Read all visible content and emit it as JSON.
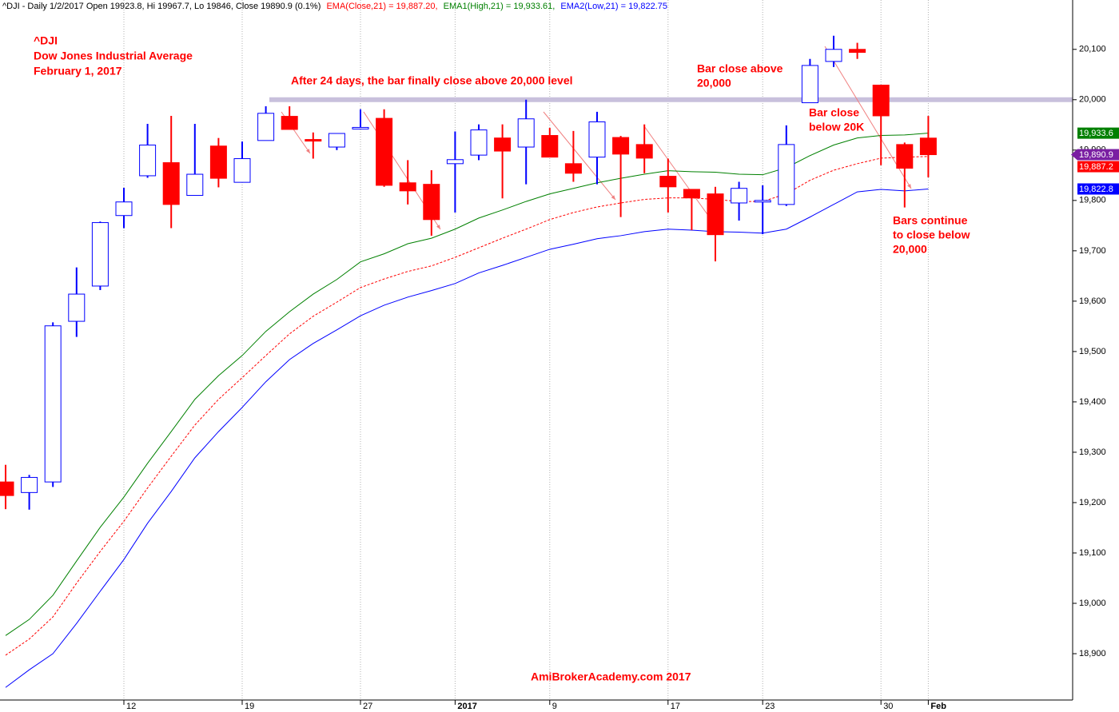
{
  "chart_data": {
    "type": "candlestick",
    "header": [
      "^DJI - Daily 1/2/2017 Open 19923.8, Hi 19967.7, Lo 19846, Close 19890.9 (0.1%)",
      "EMA(Close,21) = 19,887.20,",
      "EMA1(High,21) = 19,933.61,",
      "EMA2(Low,21) = 19,822.75"
    ],
    "header_colors": [
      "#000000",
      "#ff0000",
      "#008000",
      "#0000ff"
    ],
    "annotations": [
      {
        "lines": [
          "^DJI",
          "Dow Jones Industrial Average",
          "February 1, 2017"
        ]
      },
      {
        "lines": [
          "After 24 days, the bar finally close above 20,000 level"
        ]
      },
      {
        "lines": [
          "Bar close above",
          "20,000"
        ]
      },
      {
        "lines": [
          "Bar close",
          "below 20K"
        ]
      },
      {
        "lines": [
          "Bars continue",
          "to close below",
          "20,000"
        ]
      },
      {
        "lines": [
          "AmiBrokerAcademy.com  2017"
        ]
      }
    ],
    "categories": [
      null,
      null,
      null,
      null,
      null,
      "12",
      null,
      null,
      null,
      null,
      "19",
      null,
      null,
      null,
      null,
      "27",
      null,
      null,
      null,
      "2017",
      null,
      null,
      null,
      "9",
      null,
      null,
      null,
      null,
      "17",
      null,
      null,
      null,
      "23",
      null,
      null,
      null,
      null,
      "30",
      null,
      "Feb"
    ],
    "open": [
      19241,
      19220,
      19241,
      19560,
      19630,
      19770,
      19849,
      19875,
      19810,
      19908,
      19836,
      19919,
      19967,
      19921,
      19906,
      19943,
      19963,
      19835,
      19832,
      19873,
      19890,
      19924,
      19906,
      19929,
      19873,
      19886,
      19925,
      19911,
      19848,
      19822,
      19813,
      19795,
      19797,
      19792,
      19994,
      20076,
      20100,
      20029,
      19911,
      19923.8
    ],
    "high": [
      19275,
      19255,
      19558,
      19667,
      19758,
      19825,
      19952,
      19968,
      19952,
      19924,
      19917,
      19987,
      19987,
      19935,
      19933,
      19981,
      19981,
      19880,
      19860,
      19937,
      19951,
      19951,
      20000,
      19944,
      19938,
      19976,
      19928,
      19951,
      19883,
      19822,
      19827,
      19837,
      19830,
      19949,
      20081,
      20127,
      20113,
      20029,
      19915,
      19967.7
    ],
    "low": [
      19187,
      19186,
      19231,
      19529,
      19622,
      19745,
      19845,
      19745,
      19810,
      19826,
      19836,
      19919,
      19941,
      19883,
      19900,
      19943,
      19827,
      19792,
      19730,
      19776,
      19880,
      19804,
      19832,
      19886,
      19837,
      19832,
      19767,
      19854,
      19776,
      19741,
      19679,
      19760,
      19733,
      19789,
      19994,
      20065,
      20081,
      19870,
      19786,
      19846
    ],
    "close": [
      19214,
      19250,
      19551,
      19614,
      19756,
      19797,
      19910,
      19792,
      19852,
      19844,
      19883,
      19973,
      19941,
      19918,
      19933,
      19945,
      19830,
      19819,
      19762,
      19881,
      19940,
      19898,
      19962,
      19886,
      19854,
      19956,
      19892,
      19884,
      19827,
      19805,
      19732,
      19824,
      19800,
      19911,
      20068,
      20100,
      20094,
      19968,
      19864,
      19890.9
    ],
    "up_color": "#0000ff",
    "down_color": "#ff0000",
    "close_label": "19,890.9",
    "close_label_color": "#7a1fa2",
    "series": [
      {
        "name": "EMA1(High,21)",
        "color": "#008000",
        "dash": false,
        "last_label": "19,933.6",
        "values": [
          18936,
          18968,
          19016,
          19084,
          19151,
          19211,
          19278,
          19341,
          19405,
          19452,
          19492,
          19540,
          19579,
          19614,
          19643,
          19678,
          19694,
          19714,
          19725,
          19743,
          19765,
          19781,
          19798,
          19813,
          19824,
          19835,
          19844,
          19852,
          19859,
          19857,
          19856,
          19852,
          19851,
          19865,
          19889,
          19910,
          19924,
          19929,
          19930,
          19933.61
        ]
      },
      {
        "name": "EMA(Close,21)",
        "color": "#ff0000",
        "dash": true,
        "last_label": "19,887.2",
        "values": [
          18897,
          18929,
          18973,
          19040,
          19103,
          19163,
          19229,
          19292,
          19354,
          19405,
          19448,
          19492,
          19535,
          19570,
          19598,
          19627,
          19644,
          19659,
          19670,
          19687,
          19706,
          19725,
          19743,
          19762,
          19776,
          19787,
          19795,
          19802,
          19805,
          19805,
          19802,
          19798,
          19798,
          19813,
          19840,
          19860,
          19873,
          19884,
          19886,
          19887.2
        ]
      },
      {
        "name": "EMA2(Low,21)",
        "color": "#0000ff",
        "dash": false,
        "last_label": "19,822.8",
        "values": [
          18833,
          18868,
          18900,
          18960,
          19024,
          19087,
          19159,
          19222,
          19289,
          19341,
          19389,
          19440,
          19484,
          19516,
          19543,
          19571,
          19592,
          19608,
          19621,
          19635,
          19656,
          19671,
          19687,
          19703,
          19713,
          19724,
          19730,
          19738,
          19743,
          19741,
          19738,
          19737,
          19735,
          19743,
          19767,
          19792,
          19817,
          19822,
          19819,
          19822.75
        ]
      }
    ],
    "hline": {
      "value": 20000,
      "color": "#c8c0dc"
    },
    "ylim": [
      18808,
      20198
    ],
    "yticks": [
      {
        "value": 18900,
        "label": "18,900"
      },
      {
        "value": 19000,
        "label": "19,000"
      },
      {
        "value": 19100,
        "label": "19,100"
      },
      {
        "value": 19200,
        "label": "19,200"
      },
      {
        "value": 19300,
        "label": "19,300"
      },
      {
        "value": 19400,
        "label": "19,400"
      },
      {
        "value": 19500,
        "label": "19,500"
      },
      {
        "value": 19600,
        "label": "19,600"
      },
      {
        "value": 19700,
        "label": "19,700"
      },
      {
        "value": 19800,
        "label": "19,800"
      },
      {
        "value": 19900,
        "label": "19,900"
      },
      {
        "value": 20000,
        "label": "20,000"
      },
      {
        "value": 20100,
        "label": "20,100"
      }
    ]
  }
}
